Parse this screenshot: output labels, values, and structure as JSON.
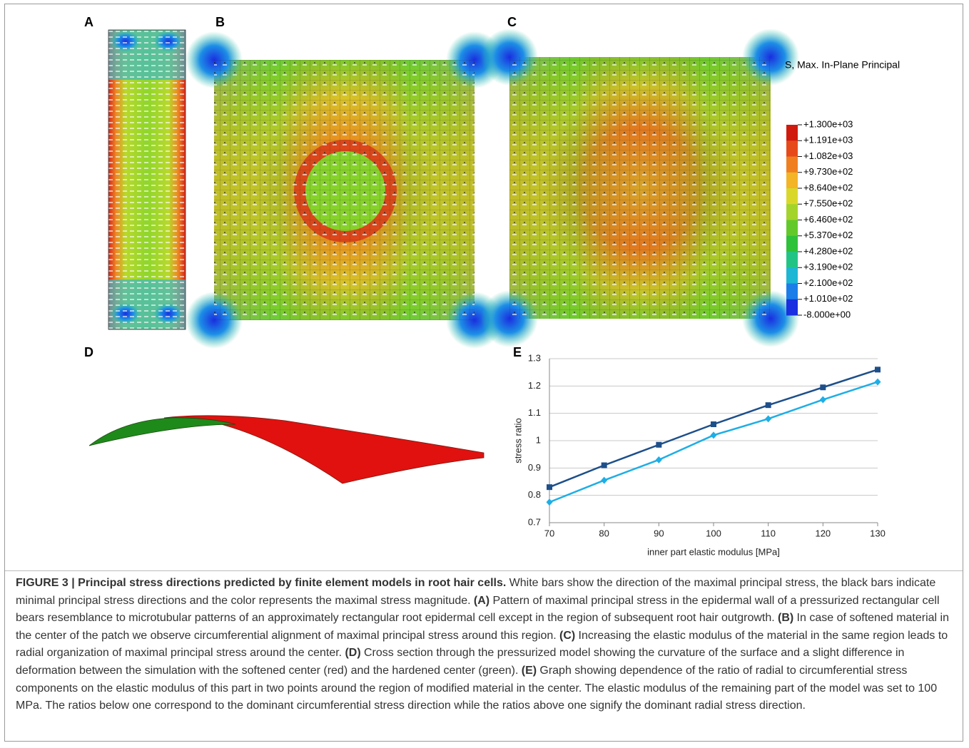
{
  "panels": {
    "a": "A",
    "b": "B",
    "c": "C",
    "d": "D",
    "e": "E"
  },
  "legend": {
    "title": "S, Max. In-Plane Principal",
    "levels": [
      "+1.300e+03",
      "+1.191e+03",
      "+1.082e+03",
      "+9.730e+02",
      "+8.640e+02",
      "+7.550e+02",
      "+6.460e+02",
      "+5.370e+02",
      "+4.280e+02",
      "+3.190e+02",
      "+2.100e+02",
      "+1.010e+02",
      "-8.000e+00"
    ],
    "colors": [
      "#d11a0e",
      "#e64a1b",
      "#f07f20",
      "#f3b426",
      "#d9d82a",
      "#a3d42b",
      "#63c92b",
      "#2ec13a",
      "#22c485",
      "#1db6d4",
      "#1a7de8",
      "#1a2fe0"
    ]
  },
  "chart_data": {
    "type": "line",
    "x": [
      70,
      80,
      90,
      100,
      110,
      120,
      130
    ],
    "series": [
      {
        "color": "#1d4f8a",
        "marker": "square",
        "values": [
          0.83,
          0.91,
          0.985,
          1.06,
          1.13,
          1.195,
          1.26
        ]
      },
      {
        "color": "#1eaee6",
        "marker": "diamond",
        "values": [
          0.775,
          0.855,
          0.93,
          1.02,
          1.08,
          1.15,
          1.215
        ]
      }
    ],
    "xlim": [
      70,
      130
    ],
    "ylim": [
      0.7,
      1.3
    ],
    "xticks": [
      70,
      80,
      90,
      100,
      110,
      120,
      130
    ],
    "yticks": [
      0.7,
      0.8,
      0.9,
      1,
      1.1,
      1.2,
      1.3
    ],
    "xlabel": "inner part elastic modulus [MPa]",
    "ylabel": "stress ratio",
    "grid": true
  },
  "caption": {
    "title": "FIGURE 3 | Principal stress directions predicted by finite element models in root hair cells.",
    "intro": "White bars show the direction of the maximal principal stress, the black bars indicate minimal principal stress directions and the color represents the maximal stress magnitude.",
    "parts": [
      {
        "label": "(A)",
        "text": "Pattern of maximal principal stress in the epidermal wall of a pressurized rectangular cell bears resemblance to microtubular patterns of an approximately rectangular root epidermal cell except in the region of subsequent root hair outgrowth."
      },
      {
        "label": "(B)",
        "text": "In case of softened material in the center of the patch we observe circumferential alignment of maximal principal stress around this region."
      },
      {
        "label": "(C)",
        "text": "Increasing the elastic modulus of the material in the same region leads to radial organization of maximal principal stress around the center."
      },
      {
        "label": "(D)",
        "text": "Cross section through the pressurized model showing the curvature of the surface and a slight difference in deformation between the simulation with the softened center (red) and the hardened center (green)."
      },
      {
        "label": "(E)",
        "text": "Graph showing dependence of the ratio of radial to circumferential stress components on the elastic modulus of this part in two points around the region of modified material in the center. The elastic modulus of the remaining part of the model was set to 100 MPa. The ratios below one correspond to the dominant circumferential stress direction while the ratios above one signify the dominant radial stress direction."
      }
    ]
  }
}
